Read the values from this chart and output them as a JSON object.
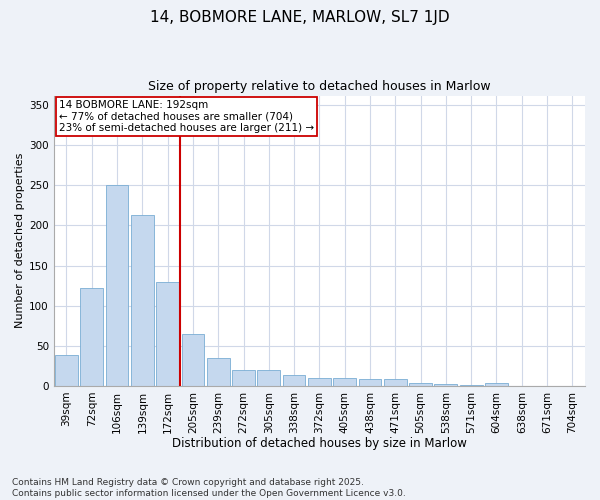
{
  "title": "14, BOBMORE LANE, MARLOW, SL7 1JD",
  "subtitle": "Size of property relative to detached houses in Marlow",
  "xlabel": "Distribution of detached houses by size in Marlow",
  "ylabel": "Number of detached properties",
  "categories": [
    "39sqm",
    "72sqm",
    "106sqm",
    "139sqm",
    "172sqm",
    "205sqm",
    "239sqm",
    "272sqm",
    "305sqm",
    "338sqm",
    "372sqm",
    "405sqm",
    "438sqm",
    "471sqm",
    "505sqm",
    "538sqm",
    "571sqm",
    "604sqm",
    "638sqm",
    "671sqm",
    "704sqm"
  ],
  "values": [
    39,
    122,
    251,
    213,
    130,
    65,
    35,
    20,
    20,
    14,
    10,
    10,
    9,
    9,
    4,
    2,
    1,
    4,
    0,
    0,
    0
  ],
  "bar_color": "#c5d8ee",
  "bar_edge_color": "#7aadd4",
  "vline_color": "#cc0000",
  "annotation_text": "14 BOBMORE LANE: 192sqm\n← 77% of detached houses are smaller (704)\n23% of semi-detached houses are larger (211) →",
  "annotation_box_color": "#ffffff",
  "annotation_box_edge": "#cc0000",
  "ylim": [
    0,
    362
  ],
  "yticks": [
    0,
    50,
    100,
    150,
    200,
    250,
    300,
    350
  ],
  "plot_bg_color": "#ffffff",
  "fig_bg_color": "#eef2f8",
  "grid_color": "#d0d8e8",
  "footer": "Contains HM Land Registry data © Crown copyright and database right 2025.\nContains public sector information licensed under the Open Government Licence v3.0.",
  "title_fontsize": 11,
  "subtitle_fontsize": 9,
  "xlabel_fontsize": 8.5,
  "ylabel_fontsize": 8,
  "tick_fontsize": 7.5,
  "annot_fontsize": 7.5,
  "footer_fontsize": 6.5
}
